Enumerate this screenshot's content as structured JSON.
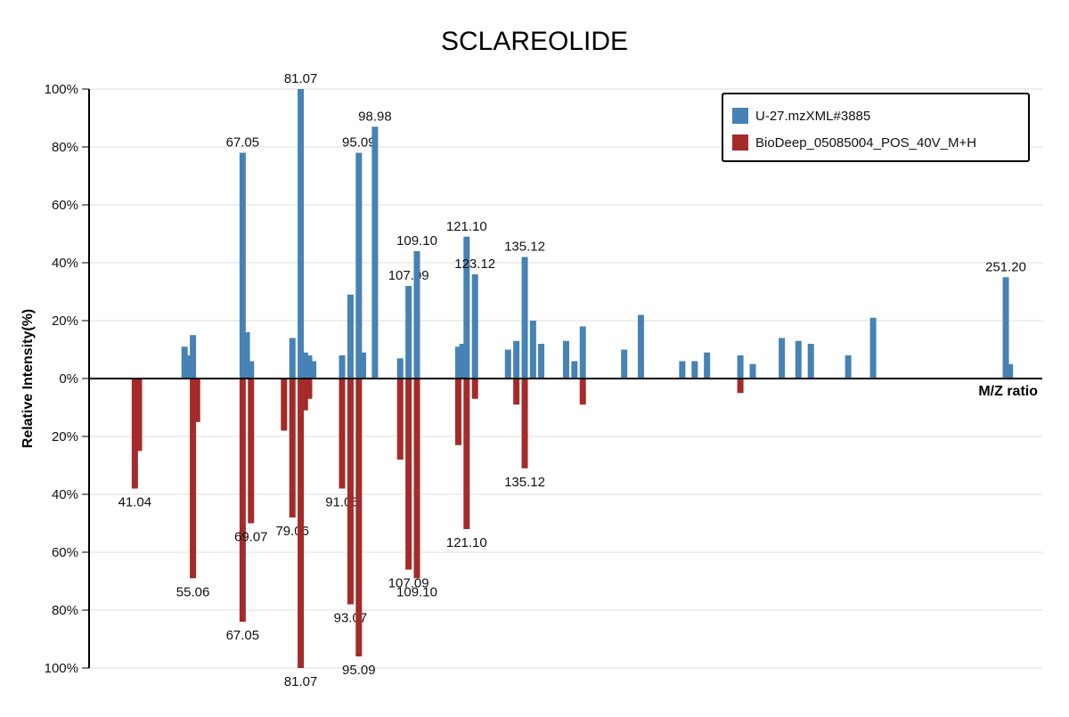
{
  "chart_data": {
    "type": "bar",
    "title": "SCLAREOLIDE",
    "xlabel": "M/Z ratio",
    "ylabel": "Relative Intensity(%)",
    "yticks": [
      "100%",
      "80%",
      "60%",
      "40%",
      "20%",
      "0%",
      "20%",
      "40%",
      "60%",
      "80%",
      "100%"
    ],
    "ylim": [
      -100,
      100
    ],
    "xlim": [
      30,
      260
    ],
    "grid": true,
    "legend_position": "top-right",
    "series": [
      {
        "name": "U-27.mzXML#3885",
        "color": "#4682b4",
        "direction": "up",
        "peaks": [
          {
            "mz": 53.04,
            "intensity": 11
          },
          {
            "mz": 54.05,
            "intensity": 8
          },
          {
            "mz": 55.06,
            "intensity": 15
          },
          {
            "mz": 67.05,
            "intensity": 78,
            "label": "67.05"
          },
          {
            "mz": 68.06,
            "intensity": 16
          },
          {
            "mz": 69.07,
            "intensity": 6
          },
          {
            "mz": 79.06,
            "intensity": 14
          },
          {
            "mz": 81.07,
            "intensity": 100,
            "label": "81.07"
          },
          {
            "mz": 82.08,
            "intensity": 9
          },
          {
            "mz": 83.09,
            "intensity": 8
          },
          {
            "mz": 84.09,
            "intensity": 6
          },
          {
            "mz": 91.05,
            "intensity": 8
          },
          {
            "mz": 93.07,
            "intensity": 29
          },
          {
            "mz": 95.09,
            "intensity": 78,
            "label": "95.09"
          },
          {
            "mz": 96.09,
            "intensity": 9
          },
          {
            "mz": 98.98,
            "intensity": 87,
            "label": "98.98"
          },
          {
            "mz": 105.07,
            "intensity": 7
          },
          {
            "mz": 107.09,
            "intensity": 32,
            "label": "107.09"
          },
          {
            "mz": 109.1,
            "intensity": 44,
            "label": "109.10"
          },
          {
            "mz": 119.09,
            "intensity": 11
          },
          {
            "mz": 120.09,
            "intensity": 12
          },
          {
            "mz": 121.1,
            "intensity": 49,
            "label": "121.10"
          },
          {
            "mz": 123.12,
            "intensity": 36,
            "label": "123.12"
          },
          {
            "mz": 131.09,
            "intensity": 10
          },
          {
            "mz": 133.1,
            "intensity": 13
          },
          {
            "mz": 135.12,
            "intensity": 42,
            "label": "135.12"
          },
          {
            "mz": 137.12,
            "intensity": 20
          },
          {
            "mz": 139.1,
            "intensity": 12
          },
          {
            "mz": 145.1,
            "intensity": 13
          },
          {
            "mz": 147.12,
            "intensity": 6
          },
          {
            "mz": 149.13,
            "intensity": 18
          },
          {
            "mz": 159.12,
            "intensity": 10
          },
          {
            "mz": 163.15,
            "intensity": 22
          },
          {
            "mz": 173.13,
            "intensity": 6
          },
          {
            "mz": 176.13,
            "intensity": 6
          },
          {
            "mz": 179.1,
            "intensity": 9
          },
          {
            "mz": 187.15,
            "intensity": 8
          },
          {
            "mz": 190.15,
            "intensity": 5
          },
          {
            "mz": 197.15,
            "intensity": 14
          },
          {
            "mz": 201.16,
            "intensity": 13
          },
          {
            "mz": 204.16,
            "intensity": 12
          },
          {
            "mz": 213.17,
            "intensity": 8
          },
          {
            "mz": 219.18,
            "intensity": 21
          },
          {
            "mz": 251.2,
            "intensity": 35,
            "label": "251.20"
          },
          {
            "mz": 252.2,
            "intensity": 5
          }
        ]
      },
      {
        "name": "BioDeep_05085004_POS_40V_M+H",
        "color": "#a52a2a",
        "direction": "down",
        "peaks": [
          {
            "mz": 41.04,
            "intensity": 38,
            "label": "41.04"
          },
          {
            "mz": 42.04,
            "intensity": 25
          },
          {
            "mz": 55.06,
            "intensity": 69,
            "label": "55.06"
          },
          {
            "mz": 56.06,
            "intensity": 15
          },
          {
            "mz": 67.05,
            "intensity": 84,
            "label": "67.05"
          },
          {
            "mz": 69.07,
            "intensity": 50,
            "label": "69.07"
          },
          {
            "mz": 77.04,
            "intensity": 18
          },
          {
            "mz": 79.06,
            "intensity": 48,
            "label": "79.06"
          },
          {
            "mz": 81.07,
            "intensity": 100,
            "label": "81.07"
          },
          {
            "mz": 82.08,
            "intensity": 11
          },
          {
            "mz": 83.09,
            "intensity": 7
          },
          {
            "mz": 91.05,
            "intensity": 38,
            "label": "91.05"
          },
          {
            "mz": 93.07,
            "intensity": 78,
            "label": "93.07"
          },
          {
            "mz": 95.09,
            "intensity": 96,
            "label": "95.09"
          },
          {
            "mz": 105.07,
            "intensity": 28
          },
          {
            "mz": 107.09,
            "intensity": 66,
            "label": "107.09"
          },
          {
            "mz": 109.1,
            "intensity": 69,
            "label": "109.10"
          },
          {
            "mz": 119.09,
            "intensity": 23
          },
          {
            "mz": 121.1,
            "intensity": 52,
            "label": "121.10"
          },
          {
            "mz": 123.12,
            "intensity": 7
          },
          {
            "mz": 133.1,
            "intensity": 9
          },
          {
            "mz": 135.12,
            "intensity": 31,
            "label": "135.12"
          },
          {
            "mz": 149.13,
            "intensity": 9
          },
          {
            "mz": 187.15,
            "intensity": 5
          }
        ]
      }
    ]
  }
}
